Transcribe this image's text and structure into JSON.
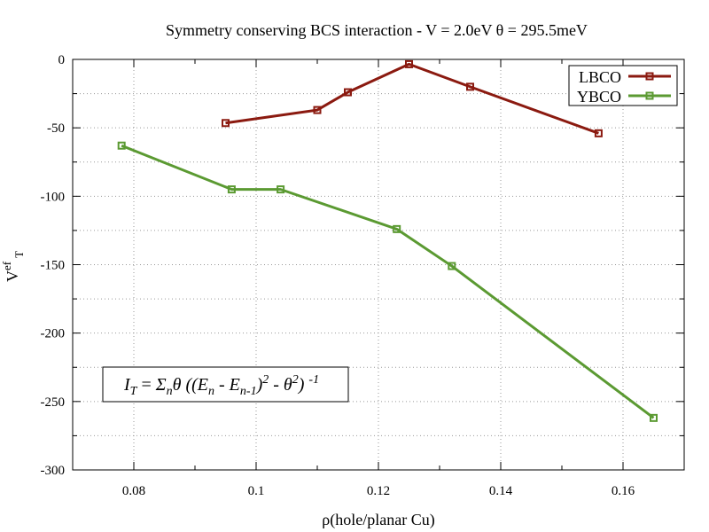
{
  "chart_data": {
    "type": "line",
    "title": "Symmetry conserving BCS interaction - V = 2.0eV  θ = 295.5meV",
    "xlabel": "ρ(hole/planar Cu)",
    "ylabel": {
      "main": "V",
      "sup": "ef",
      "sub": "T"
    },
    "xlim": [
      0.07,
      0.17
    ],
    "ylim": [
      -300,
      0
    ],
    "xticks": [
      "0.08",
      "0.1",
      "0.12",
      "0.14",
      "0.16"
    ],
    "xtick_values": [
      0.08,
      0.1,
      0.12,
      0.14,
      0.16
    ],
    "yticks": [
      "0",
      "-50",
      "-100",
      "-150",
      "-200",
      "-250",
      "-300"
    ],
    "ytick_values": [
      0,
      -50,
      -100,
      -150,
      -200,
      -250,
      -300
    ],
    "grid": true,
    "legend_position": "top-right",
    "series": [
      {
        "name": "LBCO",
        "color": "#8b1a10",
        "x": [
          0.095,
          0.11,
          0.115,
          0.125,
          0.135,
          0.156
        ],
        "y": [
          -46.5,
          -37,
          -24,
          -3.5,
          -20,
          -54
        ]
      },
      {
        "name": "YBCO",
        "color": "#5b9a32",
        "x": [
          0.078,
          0.096,
          0.104,
          0.123,
          0.132,
          0.165
        ],
        "y": [
          -63,
          -95,
          -95,
          -124,
          -151,
          -262
        ]
      }
    ],
    "annotation": {
      "I": "I",
      "I_sub": "T",
      "eq": " =  ",
      "sigma": "Σ",
      "sigma_sub": "n",
      "theta": "θ ((E",
      "E_sub": "n",
      "minus": " - E",
      "E2_sub": "n-1",
      "close": ")",
      "sq": "2",
      "minus_theta": " - θ",
      "sq2": "2",
      "close2": ") ",
      "inv": "-1"
    }
  }
}
